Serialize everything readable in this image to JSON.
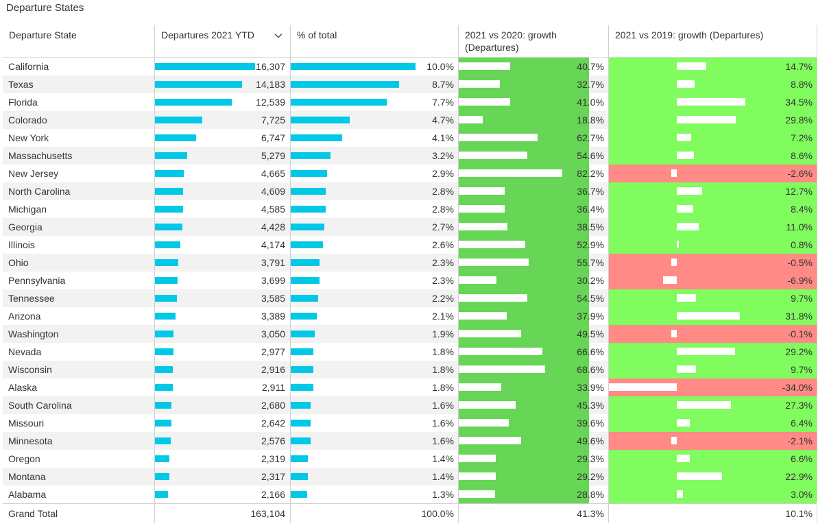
{
  "title": "Departure States",
  "headers": {
    "state": "Departure State",
    "departures": "Departures 2021 YTD",
    "pct": "% of total",
    "g2020_line1": "2021 vs 2020: growth",
    "g2020_line2": "(Departures)",
    "g2019": "2021 vs 2019: growth (Departures)"
  },
  "sort_icon": "chevron-down-icon",
  "colors": {
    "bar": "#00c8e6",
    "growth2020_bg": "#67d555",
    "positive_bg": "#80fc5e",
    "negative_bg": "#ff8a86",
    "alt_row": "#f2f2f2"
  },
  "chart_data": {
    "type": "table",
    "columns": [
      "Departure State",
      "Departures 2021 YTD",
      "% of total",
      "2021 vs 2020: growth (Departures)",
      "2021 vs 2019: growth (Departures)"
    ],
    "rows": [
      {
        "state": "California",
        "departures": 16307,
        "departures_label": "16,307",
        "pct": 10.0,
        "pct_label": "10.0%",
        "g2020": 40.7,
        "g2020_label": "40.7%",
        "g2019": 14.7,
        "g2019_label": "14.7%"
      },
      {
        "state": "Texas",
        "departures": 14183,
        "departures_label": "14,183",
        "pct": 8.7,
        "pct_label": "8.7%",
        "g2020": 32.7,
        "g2020_label": "32.7%",
        "g2019": 8.8,
        "g2019_label": "8.8%"
      },
      {
        "state": "Florida",
        "departures": 12539,
        "departures_label": "12,539",
        "pct": 7.7,
        "pct_label": "7.7%",
        "g2020": 41.0,
        "g2020_label": "41.0%",
        "g2019": 34.5,
        "g2019_label": "34.5%"
      },
      {
        "state": "Colorado",
        "departures": 7725,
        "departures_label": "7,725",
        "pct": 4.7,
        "pct_label": "4.7%",
        "g2020": 18.8,
        "g2020_label": "18.8%",
        "g2019": 29.8,
        "g2019_label": "29.8%"
      },
      {
        "state": "New York",
        "departures": 6747,
        "departures_label": "6,747",
        "pct": 4.1,
        "pct_label": "4.1%",
        "g2020": 62.7,
        "g2020_label": "62.7%",
        "g2019": 7.2,
        "g2019_label": "7.2%"
      },
      {
        "state": "Massachusetts",
        "departures": 5279,
        "departures_label": "5,279",
        "pct": 3.2,
        "pct_label": "3.2%",
        "g2020": 54.6,
        "g2020_label": "54.6%",
        "g2019": 8.6,
        "g2019_label": "8.6%"
      },
      {
        "state": "New Jersey",
        "departures": 4665,
        "departures_label": "4,665",
        "pct": 2.9,
        "pct_label": "2.9%",
        "g2020": 82.2,
        "g2020_label": "82.2%",
        "g2019": -2.6,
        "g2019_label": "-2.6%"
      },
      {
        "state": "North Carolina",
        "departures": 4609,
        "departures_label": "4,609",
        "pct": 2.8,
        "pct_label": "2.8%",
        "g2020": 36.7,
        "g2020_label": "36.7%",
        "g2019": 12.7,
        "g2019_label": "12.7%"
      },
      {
        "state": "Michigan",
        "departures": 4585,
        "departures_label": "4,585",
        "pct": 2.8,
        "pct_label": "2.8%",
        "g2020": 36.4,
        "g2020_label": "36.4%",
        "g2019": 8.4,
        "g2019_label": "8.4%"
      },
      {
        "state": "Georgia",
        "departures": 4428,
        "departures_label": "4,428",
        "pct": 2.7,
        "pct_label": "2.7%",
        "g2020": 38.5,
        "g2020_label": "38.5%",
        "g2019": 11.0,
        "g2019_label": "11.0%"
      },
      {
        "state": "Illinois",
        "departures": 4174,
        "departures_label": "4,174",
        "pct": 2.6,
        "pct_label": "2.6%",
        "g2020": 52.9,
        "g2020_label": "52.9%",
        "g2019": 0.8,
        "g2019_label": "0.8%"
      },
      {
        "state": "Ohio",
        "departures": 3791,
        "departures_label": "3,791",
        "pct": 2.3,
        "pct_label": "2.3%",
        "g2020": 55.7,
        "g2020_label": "55.7%",
        "g2019": -0.5,
        "g2019_label": "-0.5%"
      },
      {
        "state": "Pennsylvania",
        "departures": 3699,
        "departures_label": "3,699",
        "pct": 2.3,
        "pct_label": "2.3%",
        "g2020": 30.2,
        "g2020_label": "30.2%",
        "g2019": -6.9,
        "g2019_label": "-6.9%"
      },
      {
        "state": "Tennessee",
        "departures": 3585,
        "departures_label": "3,585",
        "pct": 2.2,
        "pct_label": "2.2%",
        "g2020": 54.5,
        "g2020_label": "54.5%",
        "g2019": 9.7,
        "g2019_label": "9.7%"
      },
      {
        "state": "Arizona",
        "departures": 3389,
        "departures_label": "3,389",
        "pct": 2.1,
        "pct_label": "2.1%",
        "g2020": 37.9,
        "g2020_label": "37.9%",
        "g2019": 31.8,
        "g2019_label": "31.8%"
      },
      {
        "state": "Washington",
        "departures": 3050,
        "departures_label": "3,050",
        "pct": 1.9,
        "pct_label": "1.9%",
        "g2020": 49.5,
        "g2020_label": "49.5%",
        "g2019": -0.1,
        "g2019_label": "-0.1%"
      },
      {
        "state": "Nevada",
        "departures": 2977,
        "departures_label": "2,977",
        "pct": 1.8,
        "pct_label": "1.8%",
        "g2020": 66.6,
        "g2020_label": "66.6%",
        "g2019": 29.2,
        "g2019_label": "29.2%"
      },
      {
        "state": "Wisconsin",
        "departures": 2916,
        "departures_label": "2,916",
        "pct": 1.8,
        "pct_label": "1.8%",
        "g2020": 68.6,
        "g2020_label": "68.6%",
        "g2019": 9.7,
        "g2019_label": "9.7%"
      },
      {
        "state": "Alaska",
        "departures": 2911,
        "departures_label": "2,911",
        "pct": 1.8,
        "pct_label": "1.8%",
        "g2020": 33.9,
        "g2020_label": "33.9%",
        "g2019": -34.0,
        "g2019_label": "-34.0%"
      },
      {
        "state": "South Carolina",
        "departures": 2680,
        "departures_label": "2,680",
        "pct": 1.6,
        "pct_label": "1.6%",
        "g2020": 45.3,
        "g2020_label": "45.3%",
        "g2019": 27.3,
        "g2019_label": "27.3%"
      },
      {
        "state": "Missouri",
        "departures": 2642,
        "departures_label": "2,642",
        "pct": 1.6,
        "pct_label": "1.6%",
        "g2020": 39.6,
        "g2020_label": "39.6%",
        "g2019": 6.4,
        "g2019_label": "6.4%"
      },
      {
        "state": "Minnesota",
        "departures": 2576,
        "departures_label": "2,576",
        "pct": 1.6,
        "pct_label": "1.6%",
        "g2020": 49.6,
        "g2020_label": "49.6%",
        "g2019": -2.1,
        "g2019_label": "-2.1%"
      },
      {
        "state": "Oregon",
        "departures": 2319,
        "departures_label": "2,319",
        "pct": 1.4,
        "pct_label": "1.4%",
        "g2020": 29.3,
        "g2020_label": "29.3%",
        "g2019": 6.6,
        "g2019_label": "6.6%"
      },
      {
        "state": "Montana",
        "departures": 2317,
        "departures_label": "2,317",
        "pct": 1.4,
        "pct_label": "1.4%",
        "g2020": 29.2,
        "g2020_label": "29.2%",
        "g2019": 22.9,
        "g2019_label": "22.9%"
      },
      {
        "state": "Alabama",
        "departures": 2166,
        "departures_label": "2,166",
        "pct": 1.3,
        "pct_label": "1.3%",
        "g2020": 28.8,
        "g2020_label": "28.8%",
        "g2019": 3.0,
        "g2019_label": "3.0%"
      }
    ],
    "total": {
      "label": "Grand Total",
      "departures": 163104,
      "departures_label": "163,104",
      "pct_label": "100.0%",
      "g2020_label": "41.3%",
      "g2019_label": "10.1%"
    }
  }
}
